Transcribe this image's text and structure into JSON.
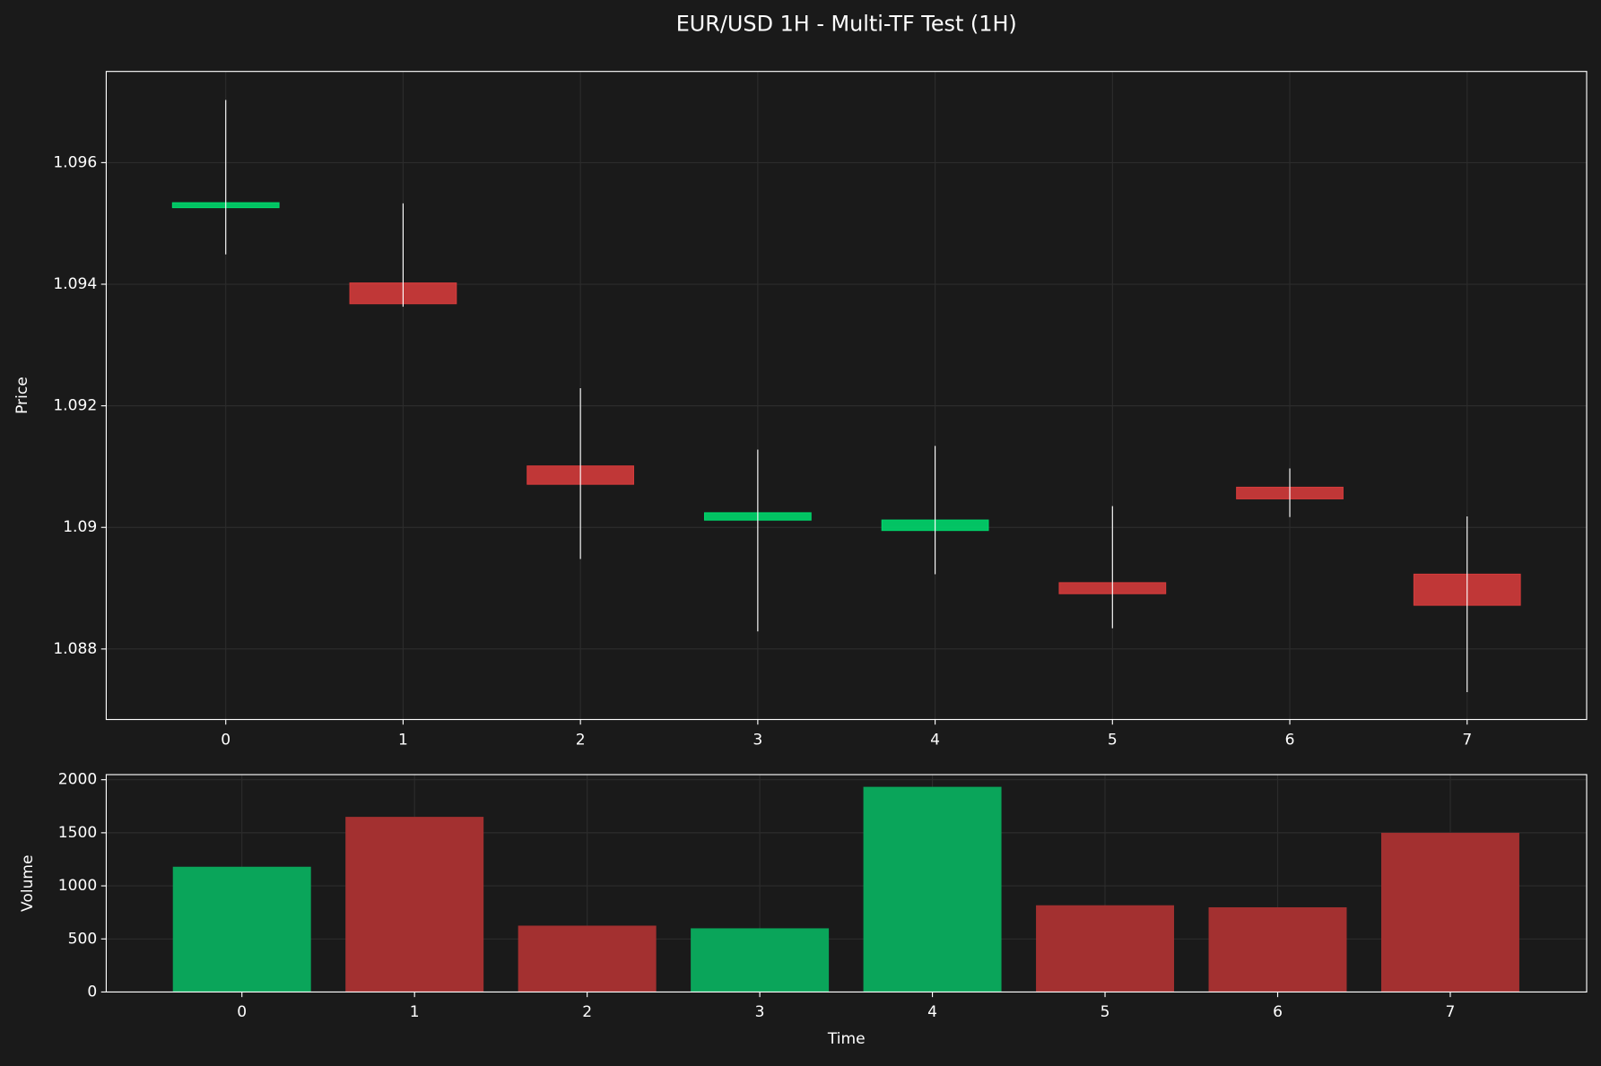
{
  "title": "EUR/USD 1H - Multi-TF Test (1H)",
  "chart_data": [
    {
      "type": "candlestick",
      "ylabel": "Price",
      "x": [
        0,
        1,
        2,
        3,
        4,
        5,
        6,
        7
      ],
      "open": [
        1.09526,
        1.09402,
        1.09101,
        1.09012,
        1.08995,
        1.08909,
        1.09066,
        1.08923
      ],
      "high": [
        1.09703,
        1.09533,
        1.09229,
        1.09128,
        1.09134,
        1.09035,
        1.09097,
        1.09018
      ],
      "low": [
        1.09449,
        1.09363,
        1.08948,
        1.08829,
        1.08923,
        1.08834,
        1.09017,
        1.08729
      ],
      "close": [
        1.09534,
        1.09368,
        1.09071,
        1.09024,
        1.09012,
        1.08891,
        1.09047,
        1.08872
      ],
      "up_color": "#00d66b",
      "down_color": "#d33b3b",
      "wick_color": "#ffffff",
      "xlim": [
        -0.674,
        7.674
      ],
      "xticks": [
        0,
        1,
        2,
        3,
        4,
        5,
        6,
        7
      ],
      "ylim": [
        1.08684,
        1.0975
      ],
      "yticks": [
        1.088,
        1.09,
        1.092,
        1.094,
        1.096
      ],
      "grid": true
    },
    {
      "type": "bar",
      "ylabel": "Volume",
      "xlabel": "Time",
      "x": [
        0,
        1,
        2,
        3,
        4,
        5,
        6,
        7
      ],
      "values": [
        1180,
        1650,
        625,
        600,
        1933,
        817,
        798,
        1500
      ],
      "colors": [
        "#0aa55a",
        "#a33030",
        "#a33030",
        "#0aa55a",
        "#0aa55a",
        "#a33030",
        "#a33030",
        "#a33030"
      ],
      "xlim": [
        -0.786,
        7.79
      ],
      "xticks": [
        0,
        1,
        2,
        3,
        4,
        5,
        6,
        7
      ],
      "ylim": [
        0,
        2048
      ],
      "yticks": [
        0,
        500,
        1000,
        1500,
        2000
      ],
      "grid": true
    }
  ]
}
